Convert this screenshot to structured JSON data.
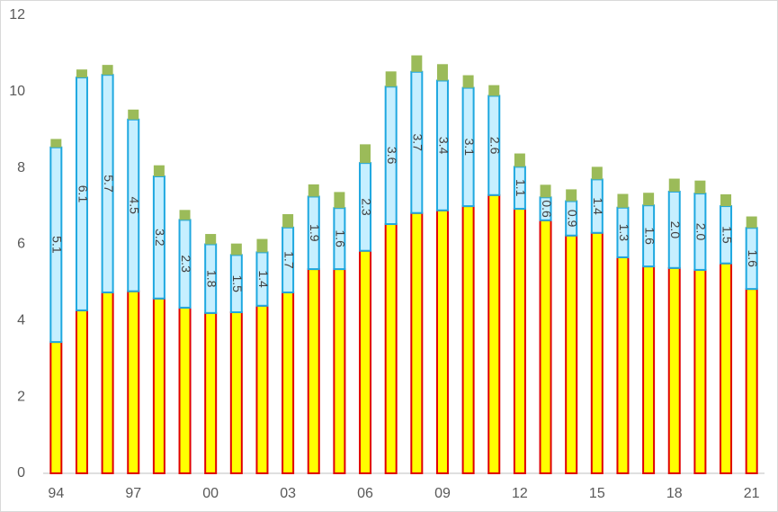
{
  "chart_data": {
    "type": "stacked_bar",
    "categories": [
      "94",
      null,
      null,
      "97",
      null,
      null,
      "00",
      null,
      null,
      "03",
      null,
      null,
      "06",
      null,
      null,
      "09",
      null,
      null,
      "12",
      null,
      null,
      "15",
      null,
      null,
      "18",
      null,
      null,
      "21"
    ],
    "series": [
      {
        "color": "#ffff00",
        "border": "#e00000",
        "values": [
          3.44,
          4.27,
          4.74,
          4.77,
          4.58,
          4.34,
          4.2,
          4.22,
          4.39,
          4.74,
          5.35,
          5.35,
          5.83,
          6.53,
          6.82,
          6.89,
          7.0,
          7.29,
          6.93,
          6.63,
          6.23,
          6.3,
          5.66,
          5.42,
          5.38,
          5.33,
          5.5,
          4.83
        ]
      },
      {
        "color": "#c6efff",
        "border": "#1fa8e0",
        "values": [
          5.1,
          6.1,
          5.7,
          4.5,
          3.2,
          2.3,
          1.8,
          1.5,
          1.4,
          1.7,
          1.9,
          1.6,
          2.3,
          3.6,
          3.7,
          3.4,
          3.1,
          2.6,
          1.1,
          0.6,
          0.9,
          1.4,
          1.3,
          1.6,
          2.0,
          2.0,
          1.5,
          1.6
        ],
        "value_labels": [
          "5.1",
          "6.1",
          "5.7",
          "4.5",
          "3.2",
          "2.3",
          "1.8",
          "1.5",
          "1.4",
          "1.7",
          "1.9",
          "1.6",
          "2.3",
          "3.6",
          "3.7",
          "3.4",
          "3.1",
          "2.6",
          "1.1",
          "0.6",
          "0.9",
          "1.4",
          "1.3",
          "1.6",
          "2.0",
          "2.0",
          "1.5",
          "1.6"
        ]
      },
      {
        "color": "#9bbb59",
        "values": [
          0.22,
          0.21,
          0.26,
          0.26,
          0.29,
          0.26,
          0.27,
          0.3,
          0.35,
          0.35,
          0.32,
          0.42,
          0.49,
          0.4,
          0.43,
          0.43,
          0.33,
          0.28,
          0.35,
          0.33,
          0.31,
          0.33,
          0.36,
          0.33,
          0.34,
          0.34,
          0.31,
          0.3
        ]
      }
    ],
    "ylim": [
      0,
      12
    ],
    "yticks": [
      0,
      2,
      4,
      6,
      8,
      10,
      12
    ],
    "grid": false
  }
}
